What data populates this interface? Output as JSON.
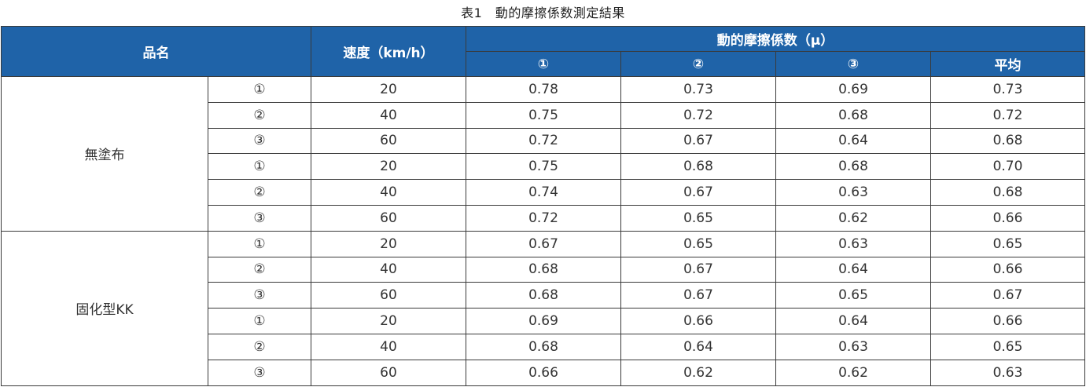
{
  "caption": "表1　動的摩擦係数測定結果",
  "header": {
    "product": "品名",
    "speed": "速度（km/h）",
    "friction_group": "動的摩擦係数（μ）",
    "trial_1": "①",
    "trial_2": "②",
    "trial_3": "③",
    "average": "平均"
  },
  "groups": [
    {
      "product": "無塗布",
      "rows": [
        {
          "sample": "①",
          "speed": "20",
          "t1": "0.78",
          "t2": "0.73",
          "t3": "0.69",
          "avg": "0.73"
        },
        {
          "sample": "②",
          "speed": "40",
          "t1": "0.75",
          "t2": "0.72",
          "t3": "0.68",
          "avg": "0.72"
        },
        {
          "sample": "③",
          "speed": "60",
          "t1": "0.72",
          "t2": "0.67",
          "t3": "0.64",
          "avg": "0.68"
        },
        {
          "sample": "①",
          "speed": "20",
          "t1": "0.75",
          "t2": "0.68",
          "t3": "0.68",
          "avg": "0.70"
        },
        {
          "sample": "②",
          "speed": "40",
          "t1": "0.74",
          "t2": "0.67",
          "t3": "0.63",
          "avg": "0.68"
        },
        {
          "sample": "③",
          "speed": "60",
          "t1": "0.72",
          "t2": "0.65",
          "t3": "0.62",
          "avg": "0.66"
        }
      ]
    },
    {
      "product": "固化型KK",
      "rows": [
        {
          "sample": "①",
          "speed": "20",
          "t1": "0.67",
          "t2": "0.65",
          "t3": "0.63",
          "avg": "0.65"
        },
        {
          "sample": "②",
          "speed": "40",
          "t1": "0.68",
          "t2": "0.67",
          "t3": "0.64",
          "avg": "0.66"
        },
        {
          "sample": "③",
          "speed": "60",
          "t1": "0.68",
          "t2": "0.67",
          "t3": "0.65",
          "avg": "0.67"
        },
        {
          "sample": "①",
          "speed": "20",
          "t1": "0.69",
          "t2": "0.66",
          "t3": "0.64",
          "avg": "0.66"
        },
        {
          "sample": "②",
          "speed": "40",
          "t1": "0.68",
          "t2": "0.64",
          "t3": "0.63",
          "avg": "0.65"
        },
        {
          "sample": "③",
          "speed": "60",
          "t1": "0.66",
          "t2": "0.62",
          "t3": "0.62",
          "avg": "0.63"
        }
      ]
    }
  ]
}
